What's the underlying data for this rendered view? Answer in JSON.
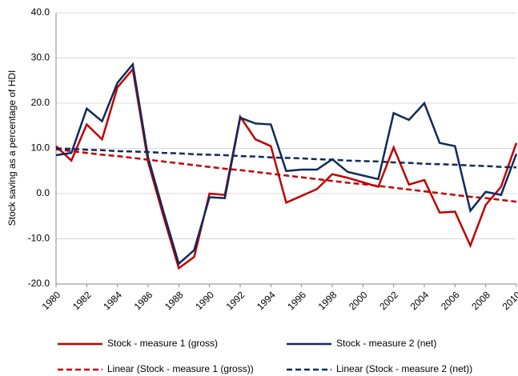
{
  "chart_data": {
    "type": "line",
    "y_label": "Stock saving as a percentage of HDI",
    "x": [
      1980,
      1981,
      1982,
      1983,
      1984,
      1985,
      1986,
      1987,
      1988,
      1989,
      1990,
      1991,
      1992,
      1993,
      1994,
      1995,
      1996,
      1997,
      1998,
      1999,
      2000,
      2001,
      2002,
      2003,
      2004,
      2005,
      2006,
      2007,
      2008,
      2009,
      2010
    ],
    "series": [
      {
        "name": "Stock - measure 1 (gross)",
        "color": "#c00000",
        "dashed": false,
        "values": [
          10.5,
          7.3,
          15.3,
          12,
          23.5,
          27.5,
          7,
          -5,
          -16.5,
          -14,
          0,
          -0.3,
          17,
          12,
          10.5,
          -2,
          -0.5,
          1,
          4.3,
          3.5,
          2.5,
          1.5,
          10.2,
          2,
          3,
          -4.2,
          -4,
          -11.5,
          -2.5,
          1.5,
          11.2
        ]
      },
      {
        "name": "Stock - measure 2 (net)",
        "color": "#0f2a5c",
        "dashed": false,
        "values": [
          8.5,
          9,
          18.8,
          16,
          24.5,
          28.6,
          8,
          -4,
          -15.5,
          -12.5,
          -0.8,
          -1,
          16.8,
          15.5,
          15.3,
          5,
          5.3,
          5.3,
          7.6,
          4.8,
          4,
          3.2,
          17.8,
          16.3,
          20,
          11.2,
          10.5,
          -3.8,
          0.4,
          -0.3,
          8.8
        ]
      },
      {
        "name": "Linear (Stock - measure 1 (gross))",
        "color": "#c00000",
        "dashed": true,
        "values": [
          9.8,
          9.4,
          9.0,
          8.6,
          8.3,
          7.9,
          7.5,
          7.1,
          6.7,
          6.3,
          5.9,
          5.5,
          5.2,
          4.8,
          4.4,
          4.0,
          3.6,
          3.2,
          2.8,
          2.4,
          2.1,
          1.7,
          1.3,
          0.9,
          0.5,
          0.1,
          -0.3,
          -0.7,
          -1.0,
          -1.4,
          -1.8
        ]
      },
      {
        "name": "Linear (Stock - measure 2 (net))",
        "color": "#0f2a5c",
        "dashed": true,
        "values": [
          10.0,
          9.9,
          9.7,
          9.6,
          9.4,
          9.3,
          9.2,
          9.0,
          8.9,
          8.7,
          8.6,
          8.5,
          8.3,
          8.2,
          8.0,
          7.9,
          7.8,
          7.6,
          7.5,
          7.3,
          7.2,
          7.1,
          6.9,
          6.8,
          6.6,
          6.5,
          6.4,
          6.2,
          6.1,
          5.9,
          5.8
        ]
      }
    ],
    "xlim": [
      1980,
      2010
    ],
    "xticks": [
      1980,
      1982,
      1984,
      1986,
      1988,
      1990,
      1992,
      1994,
      1996,
      1998,
      2000,
      2002,
      2004,
      2006,
      2008,
      2010
    ],
    "ylim": [
      -20,
      40
    ],
    "yticks": [
      {
        "value": -20,
        "label": "-20.0"
      },
      {
        "value": -10,
        "label": "-10.0"
      },
      {
        "value": 0,
        "label": "0.0"
      },
      {
        "value": 10,
        "label": "10.0"
      },
      {
        "value": 20,
        "label": "20.0"
      },
      {
        "value": 30,
        "label": "30.0"
      },
      {
        "value": 40,
        "label": "40.0"
      }
    ],
    "grid": true
  }
}
